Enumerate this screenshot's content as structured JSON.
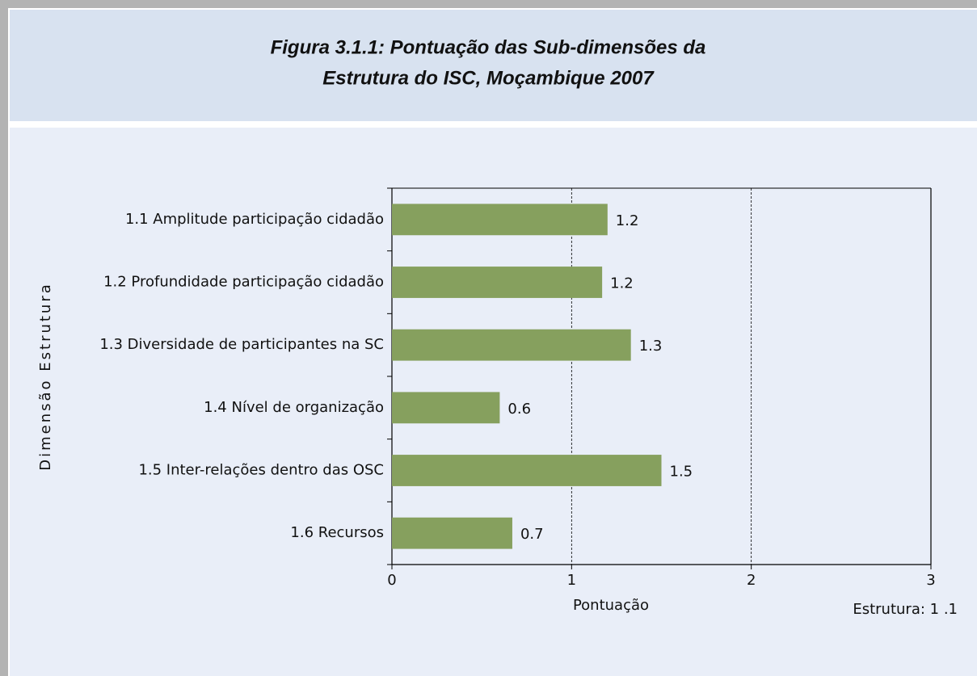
{
  "chart_data": {
    "type": "bar",
    "orientation": "horizontal",
    "title": [
      "Figura 3.1.1: Pontuação das Sub-dimensões da",
      "Estrutura do ISC,  Moçambique 2007"
    ],
    "categories": [
      "1.1 Amplitude participação cidadão",
      "1.2 Profundidade participação cidadão",
      "1.3 Diversidade de participantes na SC",
      "1.4 Nível de organização",
      "1.5 Inter-relações dentro das OSC",
      "1.6 Recursos"
    ],
    "values": [
      1.2,
      1.17,
      1.33,
      0.6,
      1.5,
      0.67
    ],
    "value_labels": [
      "1.2",
      "1.2",
      "1.3",
      "0.6",
      "1.5",
      "0.7"
    ],
    "color": "#86a05e",
    "xlim": [
      0,
      3
    ],
    "xticks": [
      0,
      1,
      2,
      3
    ],
    "grid": true,
    "xlabel": "Pontuação",
    "ylabel": "Dimensão Estrutura",
    "annotation": "Estrutura: 1 .1"
  }
}
